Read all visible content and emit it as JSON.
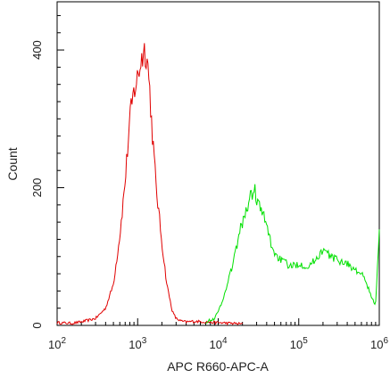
{
  "chart_data": {
    "type": "line",
    "title": "",
    "xlabel": "APC R660-APC-A",
    "ylabel": "Count",
    "x_scale": "log",
    "xlim": [
      100,
      1000000
    ],
    "ylim": [
      0,
      470
    ],
    "x_ticks": [
      {
        "value": 100,
        "base": "10",
        "exp": "2"
      },
      {
        "value": 1000,
        "base": "10",
        "exp": "3"
      },
      {
        "value": 10000,
        "base": "10",
        "exp": "4"
      },
      {
        "value": 100000,
        "base": "10",
        "exp": "5"
      },
      {
        "value": 1000000,
        "base": "10",
        "exp": "6"
      }
    ],
    "y_ticks": [
      {
        "value": 0,
        "label": "0"
      },
      {
        "value": 200,
        "label": "200"
      },
      {
        "value": 400,
        "label": "400"
      }
    ],
    "grid": false,
    "legend": "none",
    "series": [
      {
        "color": "#e00000",
        "x": [
          100,
          150,
          200,
          300,
          400,
          500,
          600,
          700,
          800,
          900,
          1000,
          1100,
          1200,
          1300,
          1400,
          1500,
          1700,
          2000,
          2300,
          2700,
          3000,
          3500,
          4000,
          5000,
          7000,
          10000,
          15000,
          20000
        ],
        "y": [
          4,
          3,
          5,
          10,
          25,
          60,
          130,
          210,
          300,
          340,
          360,
          385,
          400,
          395,
          350,
          290,
          200,
          120,
          60,
          20,
          10,
          6,
          5,
          6,
          5,
          4,
          3,
          2
        ]
      },
      {
        "color": "#00e000",
        "x": [
          7000,
          9000,
          10000,
          12000,
          14000,
          16000,
          18000,
          20000,
          22000,
          25000,
          28000,
          30000,
          33000,
          36000,
          40000,
          45000,
          50000,
          60000,
          70000,
          80000,
          100000,
          130000,
          160000,
          200000,
          250000,
          300000,
          400000,
          500000,
          600000,
          700000,
          800000,
          900000,
          1000000
        ],
        "y": [
          5,
          10,
          20,
          45,
          75,
          100,
          130,
          150,
          165,
          185,
          200,
          185,
          170,
          160,
          145,
          120,
          105,
          95,
          90,
          85,
          90,
          85,
          95,
          110,
          100,
          95,
          90,
          80,
          75,
          60,
          40,
          30,
          145
        ]
      }
    ]
  }
}
